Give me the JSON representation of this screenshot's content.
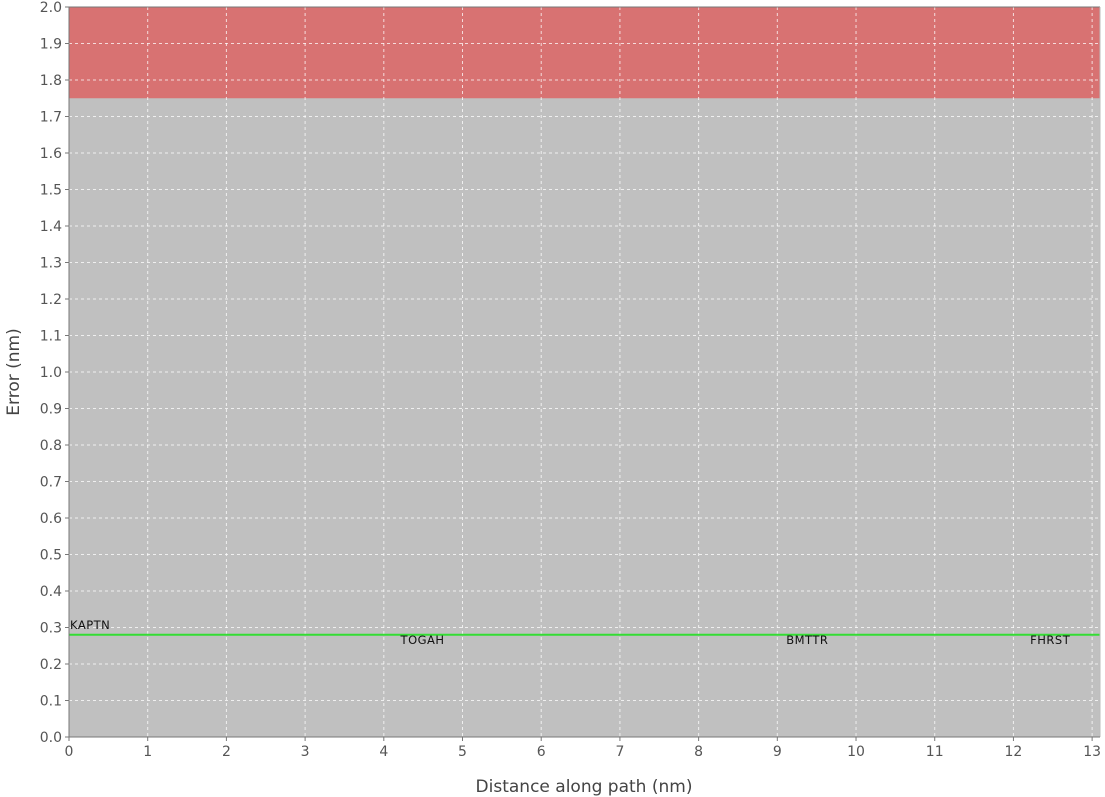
{
  "chart_data": {
    "type": "line",
    "title": "",
    "xlabel": "Distance along path (nm)",
    "ylabel": "Error (nm)",
    "xlim": [
      0,
      13.1
    ],
    "ylim": [
      0,
      2.0
    ],
    "x_ticks": [
      0,
      1,
      2,
      3,
      4,
      5,
      6,
      7,
      8,
      9,
      10,
      11,
      12,
      13
    ],
    "x_tick_labels": [
      "0",
      "1",
      "2",
      "3",
      "4",
      "5",
      "6",
      "7",
      "8",
      "9",
      "10",
      "11",
      "12",
      "13"
    ],
    "y_ticks": [
      0.0,
      0.1,
      0.2,
      0.3,
      0.4,
      0.5,
      0.6,
      0.7,
      0.8,
      0.9,
      1.0,
      1.1,
      1.2,
      1.3,
      1.4,
      1.5,
      1.6,
      1.7,
      1.8,
      1.9,
      2.0
    ],
    "y_tick_labels": [
      "0.0",
      "0.1",
      "0.2",
      "0.3",
      "0.4",
      "0.5",
      "0.6",
      "0.7",
      "0.8",
      "0.9",
      "1.0",
      "1.1",
      "1.2",
      "1.3",
      "1.4",
      "1.5",
      "1.6",
      "1.7",
      "1.8",
      "1.9",
      "2.0"
    ],
    "grid": true,
    "background_color": "#c0c0c0",
    "threshold_band": {
      "y_from": 1.75,
      "y_to": 2.0,
      "color": "#d87272"
    },
    "series": [
      {
        "color": "#33dd33",
        "x": [
          0,
          4.2,
          9.1,
          12.2,
          13.1
        ],
        "y": [
          0.28,
          0.28,
          0.28,
          0.28,
          0.28
        ]
      }
    ],
    "waypoints": [
      {
        "label": "KAPTN",
        "x": 0.0,
        "y": 0.28,
        "placement": "above"
      },
      {
        "label": "TOGAH",
        "x": 4.2,
        "y": 0.28,
        "placement": "below"
      },
      {
        "label": "BMTTR",
        "x": 9.1,
        "y": 0.28,
        "placement": "below"
      },
      {
        "label": "FHRST",
        "x": 12.2,
        "y": 0.28,
        "placement": "below"
      }
    ]
  }
}
